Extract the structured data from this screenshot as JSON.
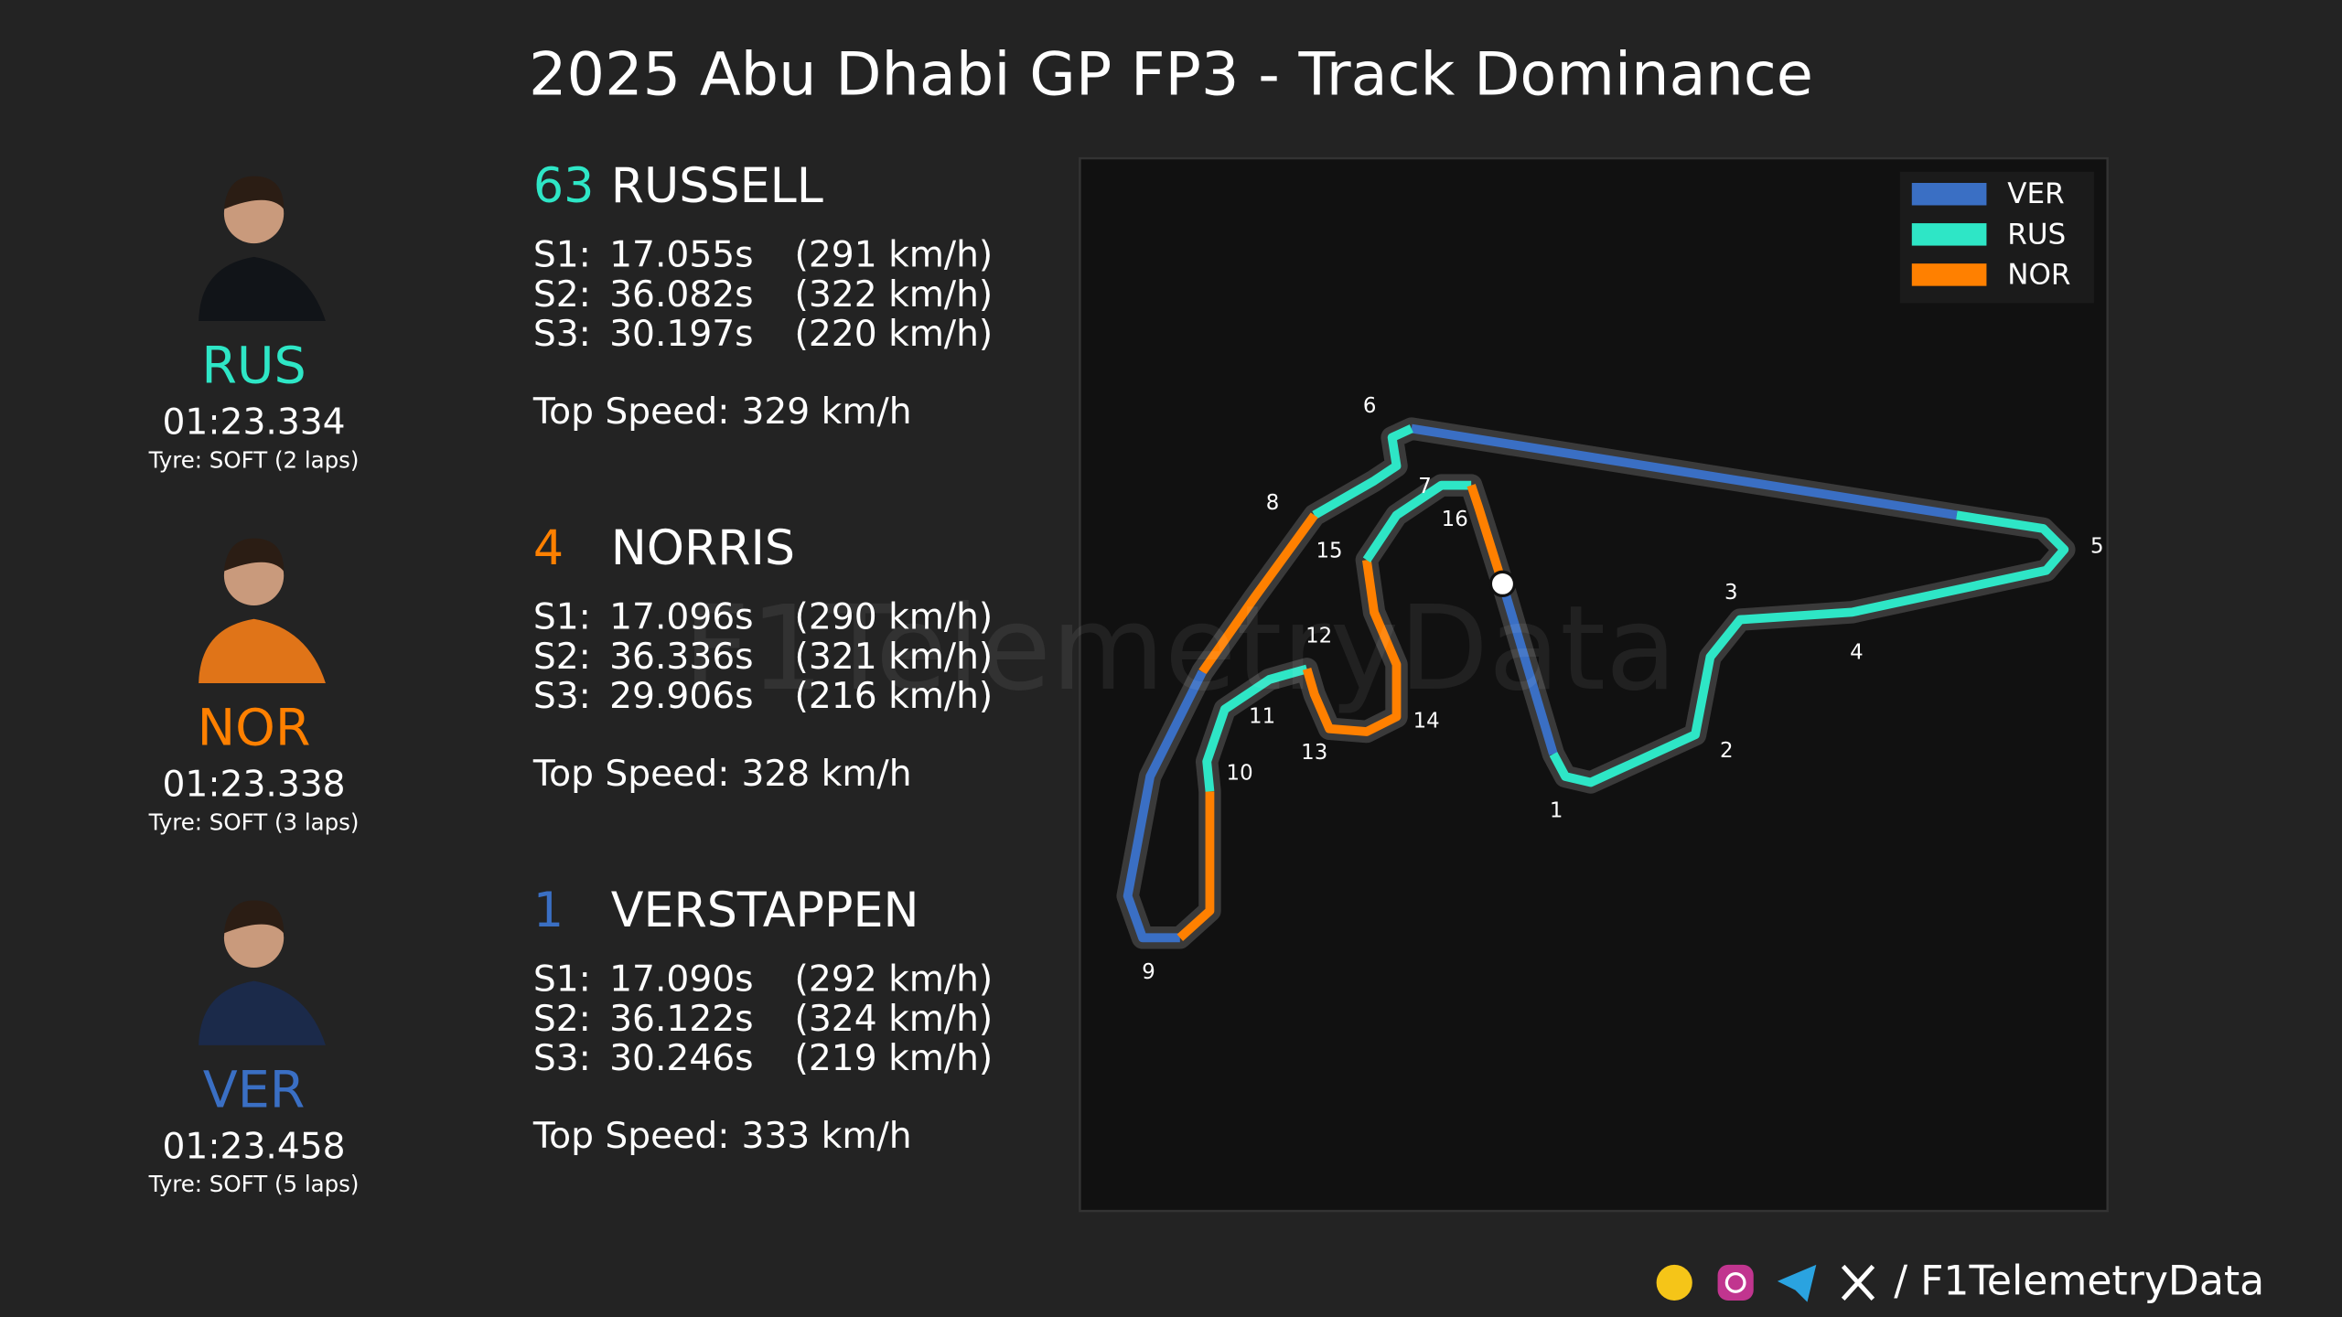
{
  "title": "2025 Abu Dhabi GP FP3 - Track Dominance",
  "drivers": [
    {
      "code": "RUS",
      "number": "63",
      "name": "RUSSELL",
      "color": "#2ee6c6",
      "lap_time": "01:23.334",
      "tyre": "Tyre: SOFT (2 laps)",
      "sectors": [
        {
          "label": "S1:",
          "time": "17.055s",
          "speed": "(291 km/h)"
        },
        {
          "label": "S2:",
          "time": "36.082s",
          "speed": "(322 km/h)"
        },
        {
          "label": "S3:",
          "time": "30.197s",
          "speed": "(220 km/h)"
        }
      ],
      "top_speed": {
        "label": "Top Speed:",
        "value": "329 km/h"
      }
    },
    {
      "code": "NOR",
      "number": "4",
      "name": "NORRIS",
      "color": "#ff8000",
      "lap_time": "01:23.338",
      "tyre": "Tyre: SOFT (3 laps)",
      "sectors": [
        {
          "label": "S1:",
          "time": "17.096s",
          "speed": "(290 km/h)"
        },
        {
          "label": "S2:",
          "time": "36.336s",
          "speed": "(321 km/h)"
        },
        {
          "label": "S3:",
          "time": "29.906s",
          "speed": "(216 km/h)"
        }
      ],
      "top_speed": {
        "label": "Top Speed:",
        "value": "328 km/h"
      }
    },
    {
      "code": "VER",
      "number": "1",
      "name": "VERSTAPPEN",
      "color": "#3a6fc4",
      "lap_time": "01:23.458",
      "tyre": "Tyre: SOFT (5 laps)",
      "sectors": [
        {
          "label": "S1:",
          "time": "17.090s",
          "speed": "(292 km/h)"
        },
        {
          "label": "S2:",
          "time": "36.122s",
          "speed": "(324 km/h)"
        },
        {
          "label": "S3:",
          "time": "30.246s",
          "speed": "(219 km/h)"
        }
      ],
      "top_speed": {
        "label": "Top Speed:",
        "value": "333 km/h"
      }
    }
  ],
  "legend": [
    {
      "name": "VER",
      "color": "#3a6fc4"
    },
    {
      "name": "RUS",
      "color": "#2ee6c6"
    },
    {
      "name": "NOR",
      "color": "#ff8000"
    }
  ],
  "turns": [
    "1",
    "2",
    "3",
    "4",
    "5",
    "6",
    "7",
    "8",
    "9",
    "10",
    "11",
    "12",
    "13",
    "14",
    "15",
    "16"
  ],
  "watermark": "F1TelemetryData",
  "footer": "/ F1TelemetryData"
}
